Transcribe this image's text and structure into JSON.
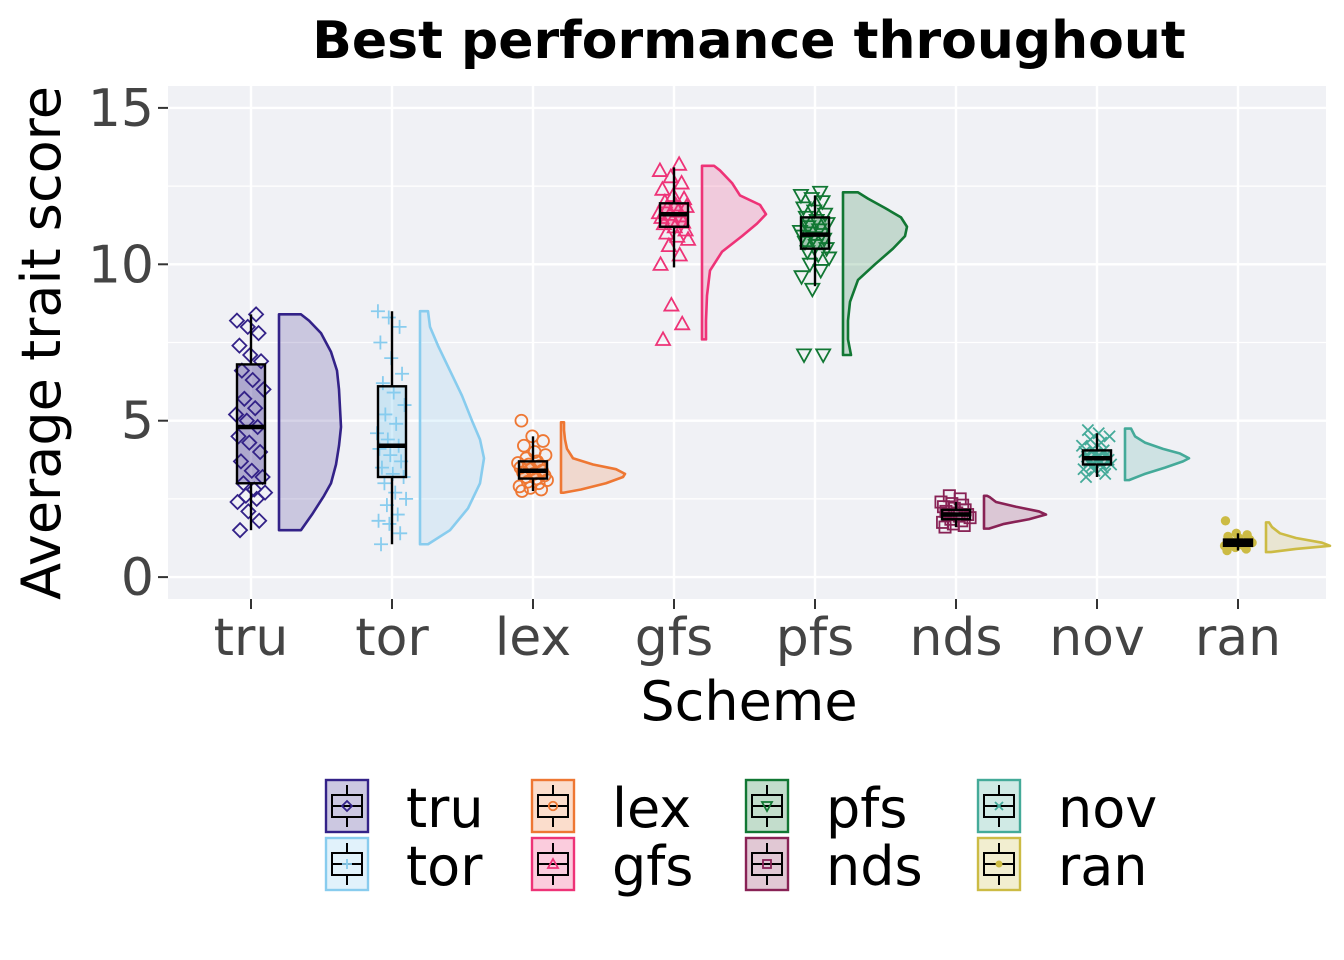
{
  "chart_data": {
    "type": "raincloud",
    "title": "Best performance throughout",
    "xlabel": "Scheme",
    "ylabel": "Average trait score",
    "ylim": [
      -0.7,
      15.7
    ],
    "yticks": [
      0,
      5,
      10,
      15
    ],
    "grid": true,
    "legend": {
      "placement": "bottom",
      "columns": 4
    },
    "categories": [
      "tru",
      "tor",
      "lex",
      "gfs",
      "pfs",
      "nds",
      "nov",
      "ran"
    ],
    "series": [
      {
        "name": "tru",
        "color": "#332288",
        "shape": "diamond",
        "box": {
          "min": 1.5,
          "q1": 3.0,
          "median": 4.8,
          "q3": 6.8,
          "max": 8.4
        },
        "density": [
          [
            1.5,
            0.22
          ],
          [
            2.0,
            0.33
          ],
          [
            2.6,
            0.45
          ],
          [
            3.0,
            0.52
          ],
          [
            3.6,
            0.57
          ],
          [
            4.2,
            0.6
          ],
          [
            4.8,
            0.62
          ],
          [
            5.4,
            0.61
          ],
          [
            6.0,
            0.6
          ],
          [
            6.6,
            0.58
          ],
          [
            7.2,
            0.52
          ],
          [
            7.8,
            0.42
          ],
          [
            8.2,
            0.3
          ],
          [
            8.4,
            0.22
          ]
        ],
        "points": [
          1.5,
          1.8,
          2.1,
          2.4,
          2.5,
          2.6,
          2.7,
          2.8,
          3.0,
          3.2,
          3.4,
          3.7,
          4.0,
          4.3,
          4.5,
          4.8,
          5.0,
          5.2,
          5.4,
          5.7,
          6.0,
          6.3,
          6.6,
          6.9,
          7.1,
          7.4,
          7.8,
          8.0,
          8.2,
          8.4
        ]
      },
      {
        "name": "tor",
        "color": "#88CCEE",
        "shape": "plus",
        "box": {
          "min": 1.05,
          "q1": 3.2,
          "median": 4.2,
          "q3": 6.1,
          "max": 8.5
        },
        "density": [
          [
            1.05,
            0.08
          ],
          [
            1.5,
            0.3
          ],
          [
            2.2,
            0.48
          ],
          [
            3.0,
            0.6
          ],
          [
            3.8,
            0.64
          ],
          [
            4.4,
            0.6
          ],
          [
            5.0,
            0.52
          ],
          [
            5.8,
            0.42
          ],
          [
            6.6,
            0.3
          ],
          [
            7.4,
            0.18
          ],
          [
            8.0,
            0.1
          ],
          [
            8.5,
            0.08
          ]
        ],
        "points": [
          1.05,
          1.4,
          1.7,
          1.8,
          2.0,
          2.3,
          2.5,
          2.7,
          3.0,
          3.2,
          3.3,
          3.5,
          3.7,
          3.9,
          4.1,
          4.2,
          4.4,
          4.6,
          4.9,
          5.2,
          5.5,
          5.9,
          6.2,
          6.5,
          7.0,
          7.5,
          8.0,
          8.3,
          8.5
        ]
      },
      {
        "name": "lex",
        "color": "#EE7733",
        "shape": "circle",
        "box": {
          "min": 2.75,
          "q1": 3.15,
          "median": 3.4,
          "q3": 3.7,
          "max": 4.5
        },
        "density": [
          [
            2.7,
            0.03
          ],
          [
            2.8,
            0.2
          ],
          [
            3.0,
            0.45
          ],
          [
            3.2,
            0.62
          ],
          [
            3.3,
            0.64
          ],
          [
            3.45,
            0.55
          ],
          [
            3.6,
            0.32
          ],
          [
            3.8,
            0.12
          ],
          [
            4.1,
            0.06
          ],
          [
            4.4,
            0.04
          ],
          [
            4.7,
            0.03
          ],
          [
            4.95,
            0.03
          ]
        ],
        "points": [
          2.75,
          2.8,
          2.85,
          2.9,
          3.0,
          3.05,
          3.1,
          3.15,
          3.2,
          3.25,
          3.3,
          3.35,
          3.4,
          3.45,
          3.5,
          3.55,
          3.6,
          3.65,
          3.7,
          3.8,
          3.9,
          4.0,
          4.2,
          4.35,
          4.5,
          5.0
        ]
      },
      {
        "name": "gfs",
        "color": "#EE3377",
        "shape": "triangle",
        "box": {
          "min": 9.9,
          "q1": 11.2,
          "median": 11.6,
          "q3": 11.95,
          "max": 13.1
        },
        "density": [
          [
            7.6,
            0.04
          ],
          [
            8.2,
            0.04
          ],
          [
            9.0,
            0.05
          ],
          [
            9.8,
            0.08
          ],
          [
            10.4,
            0.2
          ],
          [
            10.9,
            0.4
          ],
          [
            11.3,
            0.55
          ],
          [
            11.6,
            0.64
          ],
          [
            11.9,
            0.58
          ],
          [
            12.2,
            0.38
          ],
          [
            12.6,
            0.3
          ],
          [
            13.0,
            0.18
          ],
          [
            13.15,
            0.12
          ]
        ],
        "points": [
          7.6,
          8.1,
          8.7,
          10.0,
          10.3,
          10.6,
          10.8,
          10.9,
          11.0,
          11.1,
          11.2,
          11.3,
          11.35,
          11.4,
          11.5,
          11.55,
          11.6,
          11.65,
          11.7,
          11.8,
          11.85,
          11.9,
          12.0,
          12.1,
          12.2,
          12.4,
          12.6,
          12.8,
          13.0,
          13.2
        ]
      },
      {
        "name": "pfs",
        "color": "#117733",
        "shape": "triangle-down",
        "box": {
          "min": 9.3,
          "q1": 10.5,
          "median": 10.95,
          "q3": 11.5,
          "max": 12.2
        },
        "density": [
          [
            7.1,
            0.08
          ],
          [
            7.6,
            0.05
          ],
          [
            8.2,
            0.05
          ],
          [
            8.8,
            0.07
          ],
          [
            9.5,
            0.15
          ],
          [
            10.0,
            0.32
          ],
          [
            10.5,
            0.5
          ],
          [
            10.9,
            0.62
          ],
          [
            11.2,
            0.64
          ],
          [
            11.5,
            0.58
          ],
          [
            11.8,
            0.42
          ],
          [
            12.1,
            0.25
          ],
          [
            12.3,
            0.15
          ]
        ],
        "points": [
          7.1,
          7.1,
          9.2,
          9.6,
          9.8,
          10.0,
          10.2,
          10.3,
          10.4,
          10.5,
          10.6,
          10.7,
          10.8,
          10.85,
          10.9,
          10.95,
          11.0,
          11.05,
          11.1,
          11.2,
          11.3,
          11.4,
          11.5,
          11.6,
          11.7,
          11.8,
          12.0,
          12.1,
          12.2,
          12.3
        ]
      },
      {
        "name": "nds",
        "color": "#882255",
        "shape": "square",
        "box": {
          "min": 1.6,
          "q1": 1.85,
          "median": 2.0,
          "q3": 2.15,
          "max": 2.4
        },
        "density": [
          [
            1.55,
            0.05
          ],
          [
            1.7,
            0.2
          ],
          [
            1.85,
            0.45
          ],
          [
            2.0,
            0.62
          ],
          [
            2.1,
            0.55
          ],
          [
            2.25,
            0.32
          ],
          [
            2.4,
            0.12
          ],
          [
            2.55,
            0.06
          ],
          [
            2.6,
            0.03
          ]
        ],
        "points": [
          1.6,
          1.65,
          1.7,
          1.75,
          1.8,
          1.85,
          1.9,
          1.95,
          2.0,
          2.0,
          2.05,
          2.1,
          2.15,
          2.2,
          2.25,
          2.3,
          2.35,
          2.4,
          2.5,
          2.6
        ]
      },
      {
        "name": "nov",
        "color": "#44AA99",
        "shape": "cross",
        "box": {
          "min": 3.2,
          "q1": 3.6,
          "median": 3.8,
          "q3": 4.05,
          "max": 4.6
        },
        "density": [
          [
            3.1,
            0.04
          ],
          [
            3.3,
            0.2
          ],
          [
            3.5,
            0.4
          ],
          [
            3.7,
            0.58
          ],
          [
            3.8,
            0.64
          ],
          [
            3.95,
            0.55
          ],
          [
            4.1,
            0.38
          ],
          [
            4.3,
            0.2
          ],
          [
            4.5,
            0.1
          ],
          [
            4.75,
            0.06
          ]
        ],
        "points": [
          3.2,
          3.3,
          3.4,
          3.45,
          3.5,
          3.55,
          3.6,
          3.65,
          3.7,
          3.75,
          3.8,
          3.85,
          3.9,
          3.95,
          4.0,
          4.05,
          4.1,
          4.2,
          4.3,
          4.4,
          4.5,
          4.6,
          4.7
        ]
      },
      {
        "name": "ran",
        "color": "#CCBB44",
        "shape": "dot",
        "box": {
          "min": 0.85,
          "q1": 1.0,
          "median": 1.1,
          "q3": 1.2,
          "max": 1.4
        },
        "density": [
          [
            0.8,
            0.05
          ],
          [
            0.9,
            0.3
          ],
          [
            1.0,
            0.64
          ],
          [
            1.1,
            0.56
          ],
          [
            1.25,
            0.3
          ],
          [
            1.4,
            0.14
          ],
          [
            1.6,
            0.06
          ],
          [
            1.75,
            0.03
          ]
        ],
        "points": [
          0.85,
          0.9,
          0.95,
          1.0,
          1.0,
          1.05,
          1.1,
          1.1,
          1.15,
          1.2,
          1.25,
          1.3,
          1.35,
          1.4,
          1.8
        ]
      }
    ]
  }
}
